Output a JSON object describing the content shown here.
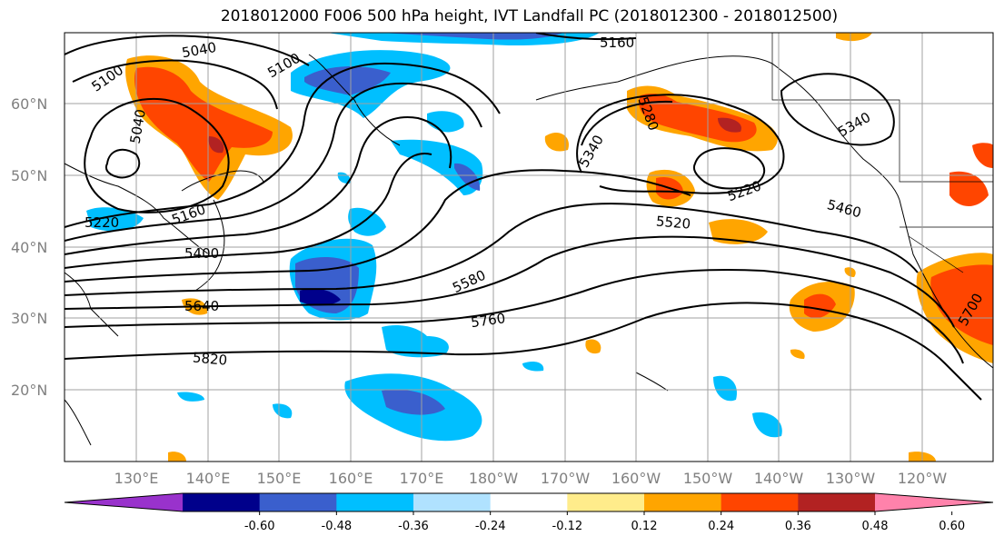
{
  "title": "2018012000 F006 500 hPa height, IVT Landfall PC (2018012300 - 2018012500)",
  "map": {
    "lat_ticks": [
      "60°N",
      "50°N",
      "40°N",
      "30°N",
      "20°N"
    ],
    "lon_ticks": [
      "130°E",
      "140°E",
      "150°E",
      "160°E",
      "170°E",
      "180°W",
      "170°W",
      "160°W",
      "150°W",
      "140°W",
      "130°W",
      "120°W"
    ],
    "contour_labels": [
      "5100",
      "5040",
      "5100",
      "5160",
      "5040",
      "5220",
      "5160",
      "5400",
      "5640",
      "5820",
      "5580",
      "5760",
      "5520",
      "5220",
      "5460",
      "5340",
      "5280",
      "5340",
      "5700"
    ]
  },
  "colorbar": {
    "colors": [
      "#9932cc",
      "#00008b",
      "#3a5fcd",
      "#00bfff",
      "#b0e2ff",
      "#ffffff",
      "#ffec8b",
      "#ffa500",
      "#ff4500",
      "#b22222",
      "#ff82ab"
    ],
    "tick_labels": [
      "-0.60",
      "-0.48",
      "-0.36",
      "-0.24",
      "-0.12",
      "0.12",
      "0.24",
      "0.36",
      "0.48",
      "0.60"
    ]
  }
}
